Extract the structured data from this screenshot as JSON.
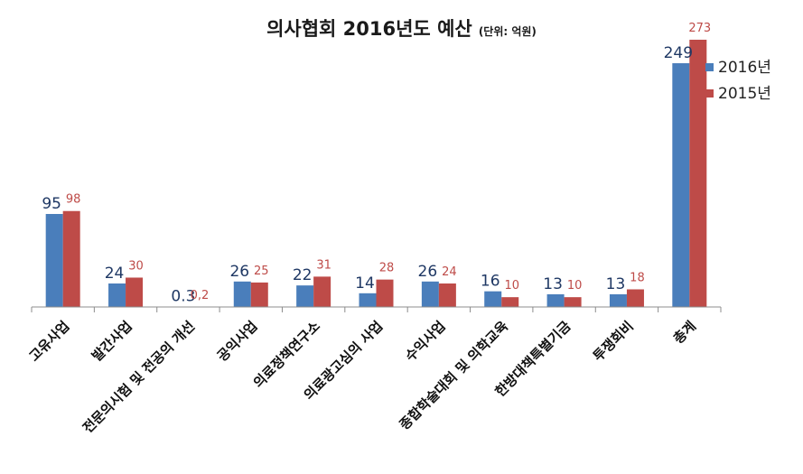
{
  "title": "의사협회 2016년도 예산",
  "subtitle": "(단위: 억원)",
  "colors": {
    "series_2016": "#4a7ebb",
    "series_2015": "#be4b48",
    "axis": "#8c8c8c"
  },
  "chart_data": {
    "type": "bar",
    "title": "의사협회 2016년도 예산",
    "subtitle": "(단위: 억원)",
    "categories": [
      "고유사업",
      "발간사업",
      "전문의시험 및 전공의 개선",
      "공익사업",
      "의료정책연구소",
      "의료광고심의 사업",
      "수익사업",
      "종합학술대회 및 의학교육",
      "한방대책특별기금",
      "투쟁회비",
      "총계"
    ],
    "series": [
      {
        "name": "2016년",
        "values": [
          95,
          24,
          0.3,
          26,
          22,
          14,
          26,
          16,
          13,
          13,
          249
        ],
        "labels": [
          "95",
          "24",
          "0.3",
          "26",
          "22",
          "14",
          "26",
          "16",
          "13",
          "13",
          "249"
        ]
      },
      {
        "name": "2015년",
        "values": [
          98,
          30,
          0.2,
          25,
          31,
          28,
          24,
          10,
          10,
          18,
          273
        ],
        "labels": [
          "98",
          "30",
          "0,2",
          "25",
          "31",
          "28",
          "24",
          "10",
          "10",
          "18",
          "273"
        ]
      }
    ],
    "ylim": [
      0,
      273
    ],
    "grid": false,
    "legend": "top-right"
  }
}
